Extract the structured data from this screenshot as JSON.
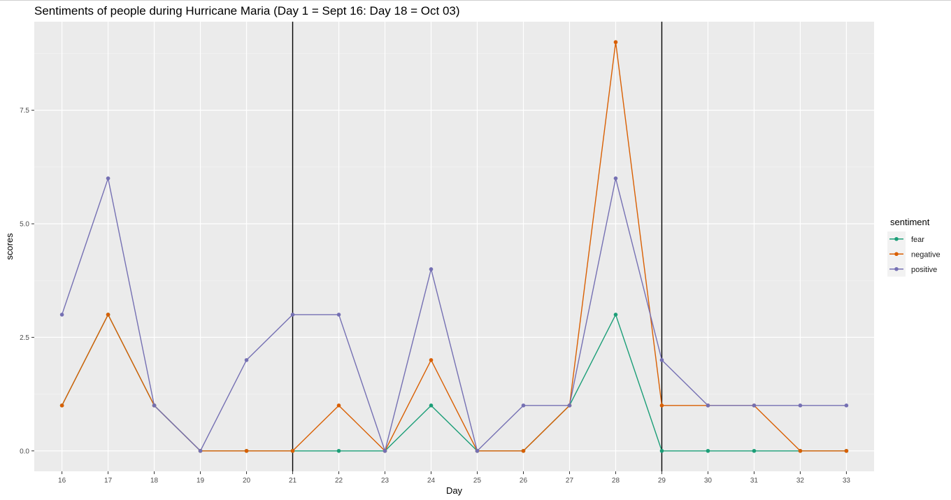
{
  "chart_data": {
    "type": "line",
    "title": "Sentiments of people during Hurricane Maria (Day 1 = Sept 16: Day 18 = Oct 03)",
    "xlabel": "Day",
    "ylabel": "scores",
    "x": [
      16,
      17,
      18,
      19,
      20,
      21,
      22,
      23,
      24,
      25,
      26,
      27,
      28,
      29,
      30,
      31,
      32,
      33
    ],
    "xlim": [
      15.4,
      33.6
    ],
    "ylim": [
      -0.45,
      9.45
    ],
    "yticks": [
      0.0,
      2.5,
      5.0,
      7.5
    ],
    "ytick_labels": [
      "0.0",
      "2.5",
      "5.0",
      "7.5"
    ],
    "grid": true,
    "vlines": [
      21,
      29
    ],
    "legend": {
      "title": "sentiment",
      "placement": "right"
    },
    "series": [
      {
        "name": "fear",
        "color": "#1b9e77",
        "values": [
          1,
          3,
          1,
          0,
          0,
          0,
          0,
          0,
          1,
          0,
          0,
          1,
          3,
          0,
          0,
          0,
          0,
          0
        ]
      },
      {
        "name": "negative",
        "color": "#d95f02",
        "values": [
          1,
          3,
          1,
          0,
          0,
          0,
          1,
          0,
          2,
          0,
          0,
          1,
          9,
          1,
          1,
          1,
          0,
          0
        ]
      },
      {
        "name": "positive",
        "color": "#7570b3",
        "values": [
          3,
          6,
          1,
          0,
          2,
          3,
          3,
          0,
          4,
          0,
          1,
          1,
          6,
          2,
          1,
          1,
          1,
          1
        ]
      }
    ]
  }
}
